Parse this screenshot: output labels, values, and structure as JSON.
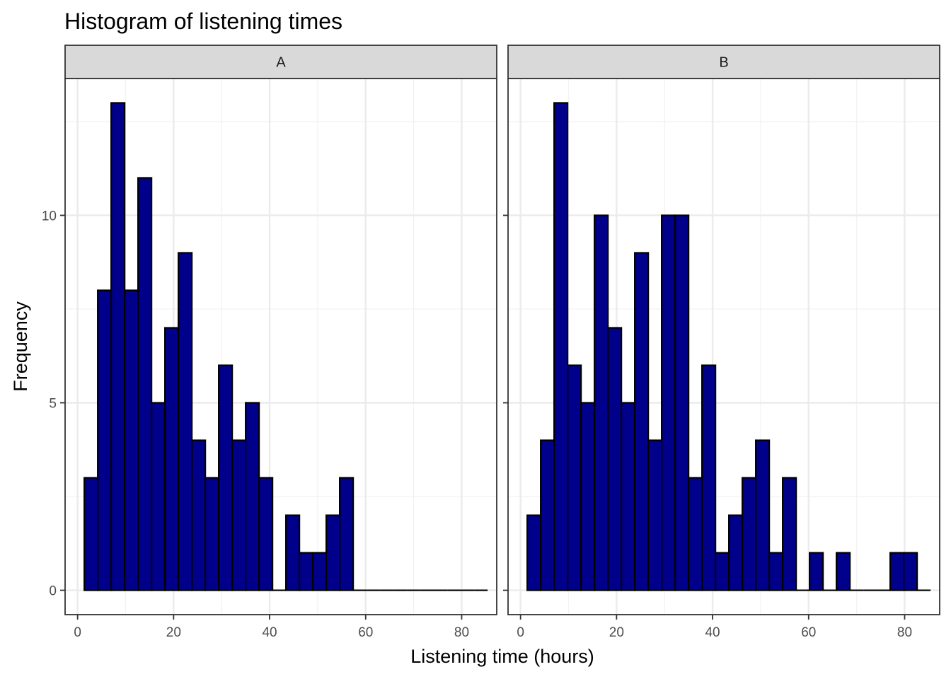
{
  "chart_data": {
    "type": "bar",
    "title": "Histogram of listening times",
    "xlabel": "Listening time (hours)",
    "ylabel": "Frequency",
    "x_ticks": [
      0,
      20,
      40,
      60,
      80
    ],
    "y_ticks": [
      0,
      5,
      10
    ],
    "xlim": [
      -2.6,
      87.3
    ],
    "ylim": [
      -0.65,
      13.65
    ],
    "grid": true,
    "bin_width": 2.8,
    "bin_start": 1.4,
    "bar_fill": "#00008B",
    "bar_stroke": "#000000",
    "panels": [
      {
        "label": "A",
        "counts": [
          3,
          8,
          13,
          8,
          11,
          5,
          7,
          9,
          4,
          3,
          6,
          4,
          5,
          3,
          0,
          2,
          1,
          1,
          2,
          3,
          0,
          0,
          0,
          0,
          0,
          0,
          0,
          0,
          0,
          0
        ]
      },
      {
        "label": "B",
        "counts": [
          2,
          4,
          13,
          6,
          5,
          10,
          7,
          5,
          9,
          4,
          10,
          10,
          3,
          6,
          1,
          2,
          3,
          4,
          1,
          3,
          0,
          1,
          0,
          1,
          0,
          0,
          0,
          1,
          1,
          0
        ]
      }
    ]
  }
}
